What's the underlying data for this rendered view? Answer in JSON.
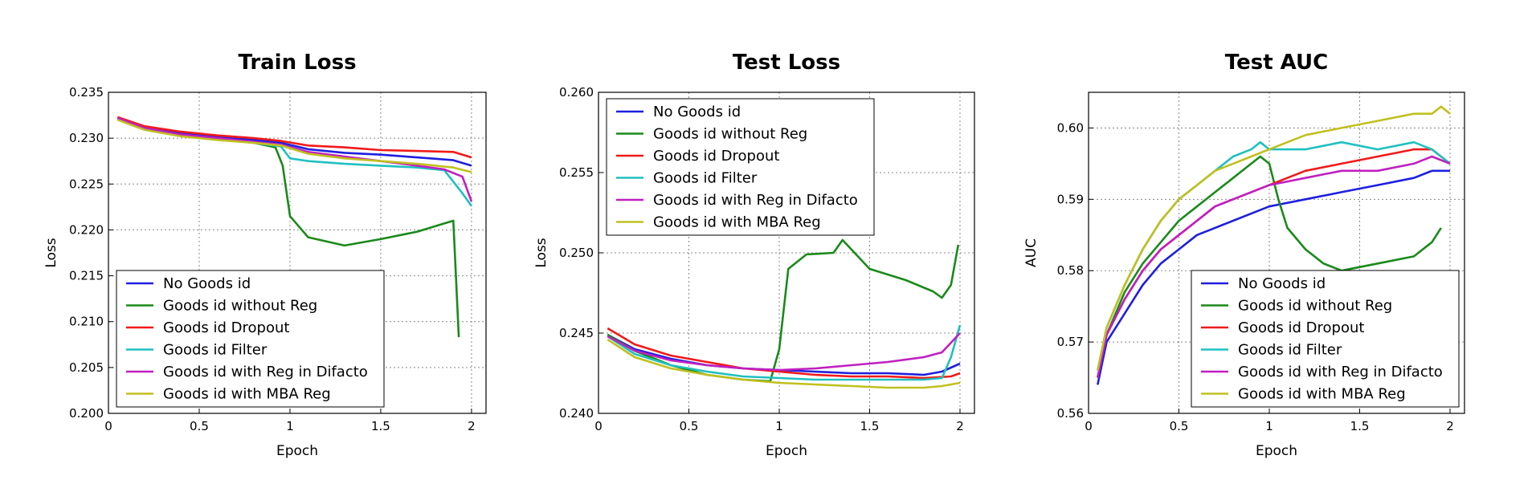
{
  "chart_data": [
    {
      "type": "line",
      "title": "Train Loss",
      "xlabel": "Epoch",
      "ylabel": "Loss",
      "xlim": [
        0,
        2.08
      ],
      "ylim": [
        0.2,
        0.235
      ],
      "xticks": [
        0,
        0.5,
        1,
        1.5,
        2
      ],
      "xtick_labels": [
        "0",
        "0.5",
        "1",
        "1.5",
        "2"
      ],
      "yticks": [
        0.2,
        0.205,
        0.21,
        0.215,
        0.22,
        0.225,
        0.23,
        0.235
      ],
      "ytick_labels": [
        "0.200",
        "0.205",
        "0.210",
        "0.215",
        "0.220",
        "0.225",
        "0.230",
        "0.235"
      ],
      "grid": true,
      "legend_position": "lower-left",
      "series": [
        {
          "name": "No Goods id",
          "color": "#1f1fe0",
          "x": [
            0.05,
            0.2,
            0.4,
            0.6,
            0.8,
            0.95,
            1.1,
            1.3,
            1.5,
            1.7,
            1.9,
            2.0
          ],
          "y": [
            0.2322,
            0.2311,
            0.2305,
            0.2301,
            0.2298,
            0.2295,
            0.2288,
            0.2284,
            0.2282,
            0.2279,
            0.2276,
            0.227
          ]
        },
        {
          "name": "Goods id without Reg",
          "color": "#1a8a1a",
          "x": [
            0.05,
            0.2,
            0.4,
            0.6,
            0.8,
            0.92,
            0.96,
            1.0,
            1.1,
            1.3,
            1.5,
            1.7,
            1.85,
            1.9,
            1.93
          ],
          "y": [
            0.2321,
            0.231,
            0.2303,
            0.2299,
            0.2295,
            0.229,
            0.227,
            0.2215,
            0.2192,
            0.2183,
            0.219,
            0.2198,
            0.2207,
            0.221,
            0.2083
          ]
        },
        {
          "name": "Goods id Dropout",
          "color": "#f01a1a",
          "x": [
            0.05,
            0.2,
            0.4,
            0.6,
            0.8,
            0.95,
            1.1,
            1.3,
            1.5,
            1.7,
            1.9,
            2.0
          ],
          "y": [
            0.2323,
            0.2313,
            0.2307,
            0.2303,
            0.23,
            0.2297,
            0.2292,
            0.229,
            0.2287,
            0.2286,
            0.2285,
            0.2279
          ]
        },
        {
          "name": "Goods id Filter",
          "color": "#20c0c0",
          "x": [
            0.05,
            0.2,
            0.4,
            0.6,
            0.8,
            0.95,
            1.0,
            1.1,
            1.3,
            1.5,
            1.7,
            1.85,
            1.95,
            2.0
          ],
          "y": [
            0.2321,
            0.231,
            0.2303,
            0.2299,
            0.2295,
            0.2291,
            0.2278,
            0.2275,
            0.2272,
            0.227,
            0.2268,
            0.2265,
            0.224,
            0.2226
          ]
        },
        {
          "name": "Goods id with Reg in Difacto",
          "color": "#c020c0",
          "x": [
            0.05,
            0.2,
            0.4,
            0.6,
            0.8,
            0.95,
            1.1,
            1.3,
            1.5,
            1.7,
            1.85,
            1.95,
            2.0
          ],
          "y": [
            0.2322,
            0.2311,
            0.2304,
            0.23,
            0.2296,
            0.2293,
            0.2285,
            0.228,
            0.2275,
            0.227,
            0.2266,
            0.2258,
            0.2231
          ]
        },
        {
          "name": "Goods id with MBA Reg",
          "color": "#c0c020",
          "x": [
            0.05,
            0.2,
            0.4,
            0.6,
            0.8,
            0.95,
            1.1,
            1.3,
            1.5,
            1.7,
            1.9,
            2.0
          ],
          "y": [
            0.232,
            0.2309,
            0.2302,
            0.2298,
            0.2295,
            0.2292,
            0.2283,
            0.2278,
            0.2275,
            0.2272,
            0.2268,
            0.2263
          ]
        }
      ]
    },
    {
      "type": "line",
      "title": "Test Loss",
      "xlabel": "Epoch",
      "ylabel": "Loss",
      "xlim": [
        0,
        2.08
      ],
      "ylim": [
        0.24,
        0.26
      ],
      "xticks": [
        0,
        0.5,
        1,
        1.5,
        2
      ],
      "xtick_labels": [
        "0",
        "0.5",
        "1",
        "1.5",
        "2"
      ],
      "yticks": [
        0.24,
        0.245,
        0.25,
        0.255,
        0.26
      ],
      "ytick_labels": [
        "0.240",
        "0.245",
        "0.250",
        "0.255",
        "0.260"
      ],
      "grid": true,
      "legend_position": "upper-left",
      "series": [
        {
          "name": "No Goods id",
          "color": "#1f1fe0",
          "x": [
            0.05,
            0.2,
            0.4,
            0.6,
            0.8,
            1.0,
            1.2,
            1.4,
            1.6,
            1.8,
            1.9,
            2.0
          ],
          "y": [
            0.2449,
            0.244,
            0.2434,
            0.243,
            0.2428,
            0.2427,
            0.2426,
            0.2425,
            0.2425,
            0.2424,
            0.2426,
            0.2431
          ]
        },
        {
          "name": "Goods id without Reg",
          "color": "#1a8a1a",
          "x": [
            0.05,
            0.2,
            0.4,
            0.6,
            0.8,
            0.95,
            1.0,
            1.05,
            1.15,
            1.3,
            1.35,
            1.5,
            1.7,
            1.85,
            1.9,
            1.95,
            1.99
          ],
          "y": [
            0.2449,
            0.2439,
            0.243,
            0.2424,
            0.2421,
            0.242,
            0.244,
            0.249,
            0.2499,
            0.25,
            0.2508,
            0.249,
            0.2483,
            0.2476,
            0.2472,
            0.248,
            0.2505
          ]
        },
        {
          "name": "Goods id Dropout",
          "color": "#f01a1a",
          "x": [
            0.05,
            0.2,
            0.4,
            0.6,
            0.8,
            1.0,
            1.2,
            1.4,
            1.6,
            1.8,
            1.95,
            2.0
          ],
          "y": [
            0.2453,
            0.2443,
            0.2436,
            0.2432,
            0.2428,
            0.2426,
            0.2424,
            0.2423,
            0.2423,
            0.2422,
            0.2423,
            0.2425
          ]
        },
        {
          "name": "Goods id Filter",
          "color": "#20c0c0",
          "x": [
            0.05,
            0.2,
            0.4,
            0.6,
            0.8,
            1.0,
            1.2,
            1.4,
            1.6,
            1.8,
            1.9,
            1.95,
            2.0
          ],
          "y": [
            0.2448,
            0.2437,
            0.243,
            0.2426,
            0.2423,
            0.2422,
            0.2421,
            0.2421,
            0.2421,
            0.2421,
            0.2422,
            0.2435,
            0.2455
          ]
        },
        {
          "name": "Goods id with Reg in Difacto",
          "color": "#c020c0",
          "x": [
            0.05,
            0.2,
            0.4,
            0.6,
            0.8,
            1.0,
            1.2,
            1.4,
            1.6,
            1.8,
            1.9,
            2.0
          ],
          "y": [
            0.2448,
            0.2439,
            0.2433,
            0.243,
            0.2428,
            0.2427,
            0.2428,
            0.243,
            0.2432,
            0.2435,
            0.2438,
            0.245
          ]
        },
        {
          "name": "Goods id with MBA Reg",
          "color": "#c0c020",
          "x": [
            0.05,
            0.2,
            0.4,
            0.6,
            0.8,
            1.0,
            1.2,
            1.4,
            1.6,
            1.8,
            1.9,
            2.0
          ],
          "y": [
            0.2446,
            0.2435,
            0.2428,
            0.2424,
            0.2421,
            0.2419,
            0.2418,
            0.2417,
            0.2416,
            0.2416,
            0.2417,
            0.2419
          ]
        }
      ]
    },
    {
      "type": "line",
      "title": "Test    AUC",
      "xlabel": "Epoch",
      "ylabel": "AUC",
      "xlim": [
        0,
        2.08
      ],
      "ylim": [
        0.56,
        0.605
      ],
      "xticks": [
        0,
        0.5,
        1,
        1.5,
        2
      ],
      "xtick_labels": [
        "0",
        "0.5",
        "1",
        "1.5",
        "2"
      ],
      "yticks": [
        0.56,
        0.57,
        0.58,
        0.59,
        0.6
      ],
      "ytick_labels": [
        "0.56",
        "0.57",
        "0.58",
        "0.59",
        "0.60"
      ],
      "grid": true,
      "legend_position": "lower-right",
      "series": [
        {
          "name": "No Goods id",
          "color": "#1f1fe0",
          "x": [
            0.05,
            0.1,
            0.2,
            0.3,
            0.4,
            0.5,
            0.6,
            0.7,
            0.8,
            0.9,
            1.0,
            1.2,
            1.4,
            1.6,
            1.8,
            1.9,
            2.0
          ],
          "y": [
            0.564,
            0.57,
            0.574,
            0.578,
            0.581,
            0.583,
            0.585,
            0.586,
            0.587,
            0.588,
            0.589,
            0.59,
            0.591,
            0.592,
            0.593,
            0.594,
            0.594
          ]
        },
        {
          "name": "Goods id without Reg",
          "color": "#1a8a1a",
          "x": [
            0.05,
            0.1,
            0.2,
            0.3,
            0.4,
            0.5,
            0.6,
            0.7,
            0.8,
            0.9,
            0.95,
            1.0,
            1.05,
            1.1,
            1.2,
            1.3,
            1.4,
            1.6,
            1.8,
            1.9,
            1.95
          ],
          "y": [
            0.565,
            0.571,
            0.577,
            0.581,
            0.584,
            0.587,
            0.589,
            0.591,
            0.593,
            0.595,
            0.596,
            0.595,
            0.59,
            0.586,
            0.583,
            0.581,
            0.58,
            0.581,
            0.582,
            0.584,
            0.586
          ]
        },
        {
          "name": "Goods id Dropout",
          "color": "#f01a1a",
          "x": [
            0.05,
            0.1,
            0.2,
            0.3,
            0.4,
            0.5,
            0.6,
            0.7,
            0.8,
            0.9,
            1.0,
            1.2,
            1.4,
            1.6,
            1.8,
            1.9,
            2.0
          ],
          "y": [
            0.565,
            0.571,
            0.576,
            0.58,
            0.583,
            0.585,
            0.587,
            0.589,
            0.59,
            0.591,
            0.592,
            0.594,
            0.595,
            0.596,
            0.597,
            0.597,
            0.595
          ]
        },
        {
          "name": "Goods id Filter",
          "color": "#20c0c0",
          "x": [
            0.05,
            0.1,
            0.2,
            0.3,
            0.4,
            0.5,
            0.6,
            0.7,
            0.8,
            0.9,
            0.95,
            1.0,
            1.2,
            1.4,
            1.6,
            1.8,
            1.9,
            2.0
          ],
          "y": [
            0.566,
            0.572,
            0.578,
            0.583,
            0.587,
            0.59,
            0.592,
            0.594,
            0.596,
            0.597,
            0.598,
            0.597,
            0.597,
            0.598,
            0.597,
            0.598,
            0.597,
            0.595
          ]
        },
        {
          "name": "Goods id with Reg in Difacto",
          "color": "#c020c0",
          "x": [
            0.05,
            0.1,
            0.2,
            0.3,
            0.4,
            0.5,
            0.6,
            0.7,
            0.8,
            0.9,
            1.0,
            1.2,
            1.4,
            1.6,
            1.8,
            1.9,
            2.0
          ],
          "y": [
            0.565,
            0.571,
            0.576,
            0.58,
            0.583,
            0.585,
            0.587,
            0.589,
            0.59,
            0.591,
            0.592,
            0.593,
            0.594,
            0.594,
            0.595,
            0.596,
            0.595
          ]
        },
        {
          "name": "Goods id with MBA Reg",
          "color": "#c0c020",
          "x": [
            0.05,
            0.1,
            0.2,
            0.3,
            0.4,
            0.5,
            0.6,
            0.7,
            0.8,
            0.9,
            1.0,
            1.2,
            1.4,
            1.6,
            1.8,
            1.9,
            1.95,
            2.0
          ],
          "y": [
            0.566,
            0.572,
            0.578,
            0.583,
            0.587,
            0.59,
            0.592,
            0.594,
            0.595,
            0.596,
            0.597,
            0.599,
            0.6,
            0.601,
            0.602,
            0.602,
            0.603,
            0.602
          ]
        }
      ]
    }
  ]
}
